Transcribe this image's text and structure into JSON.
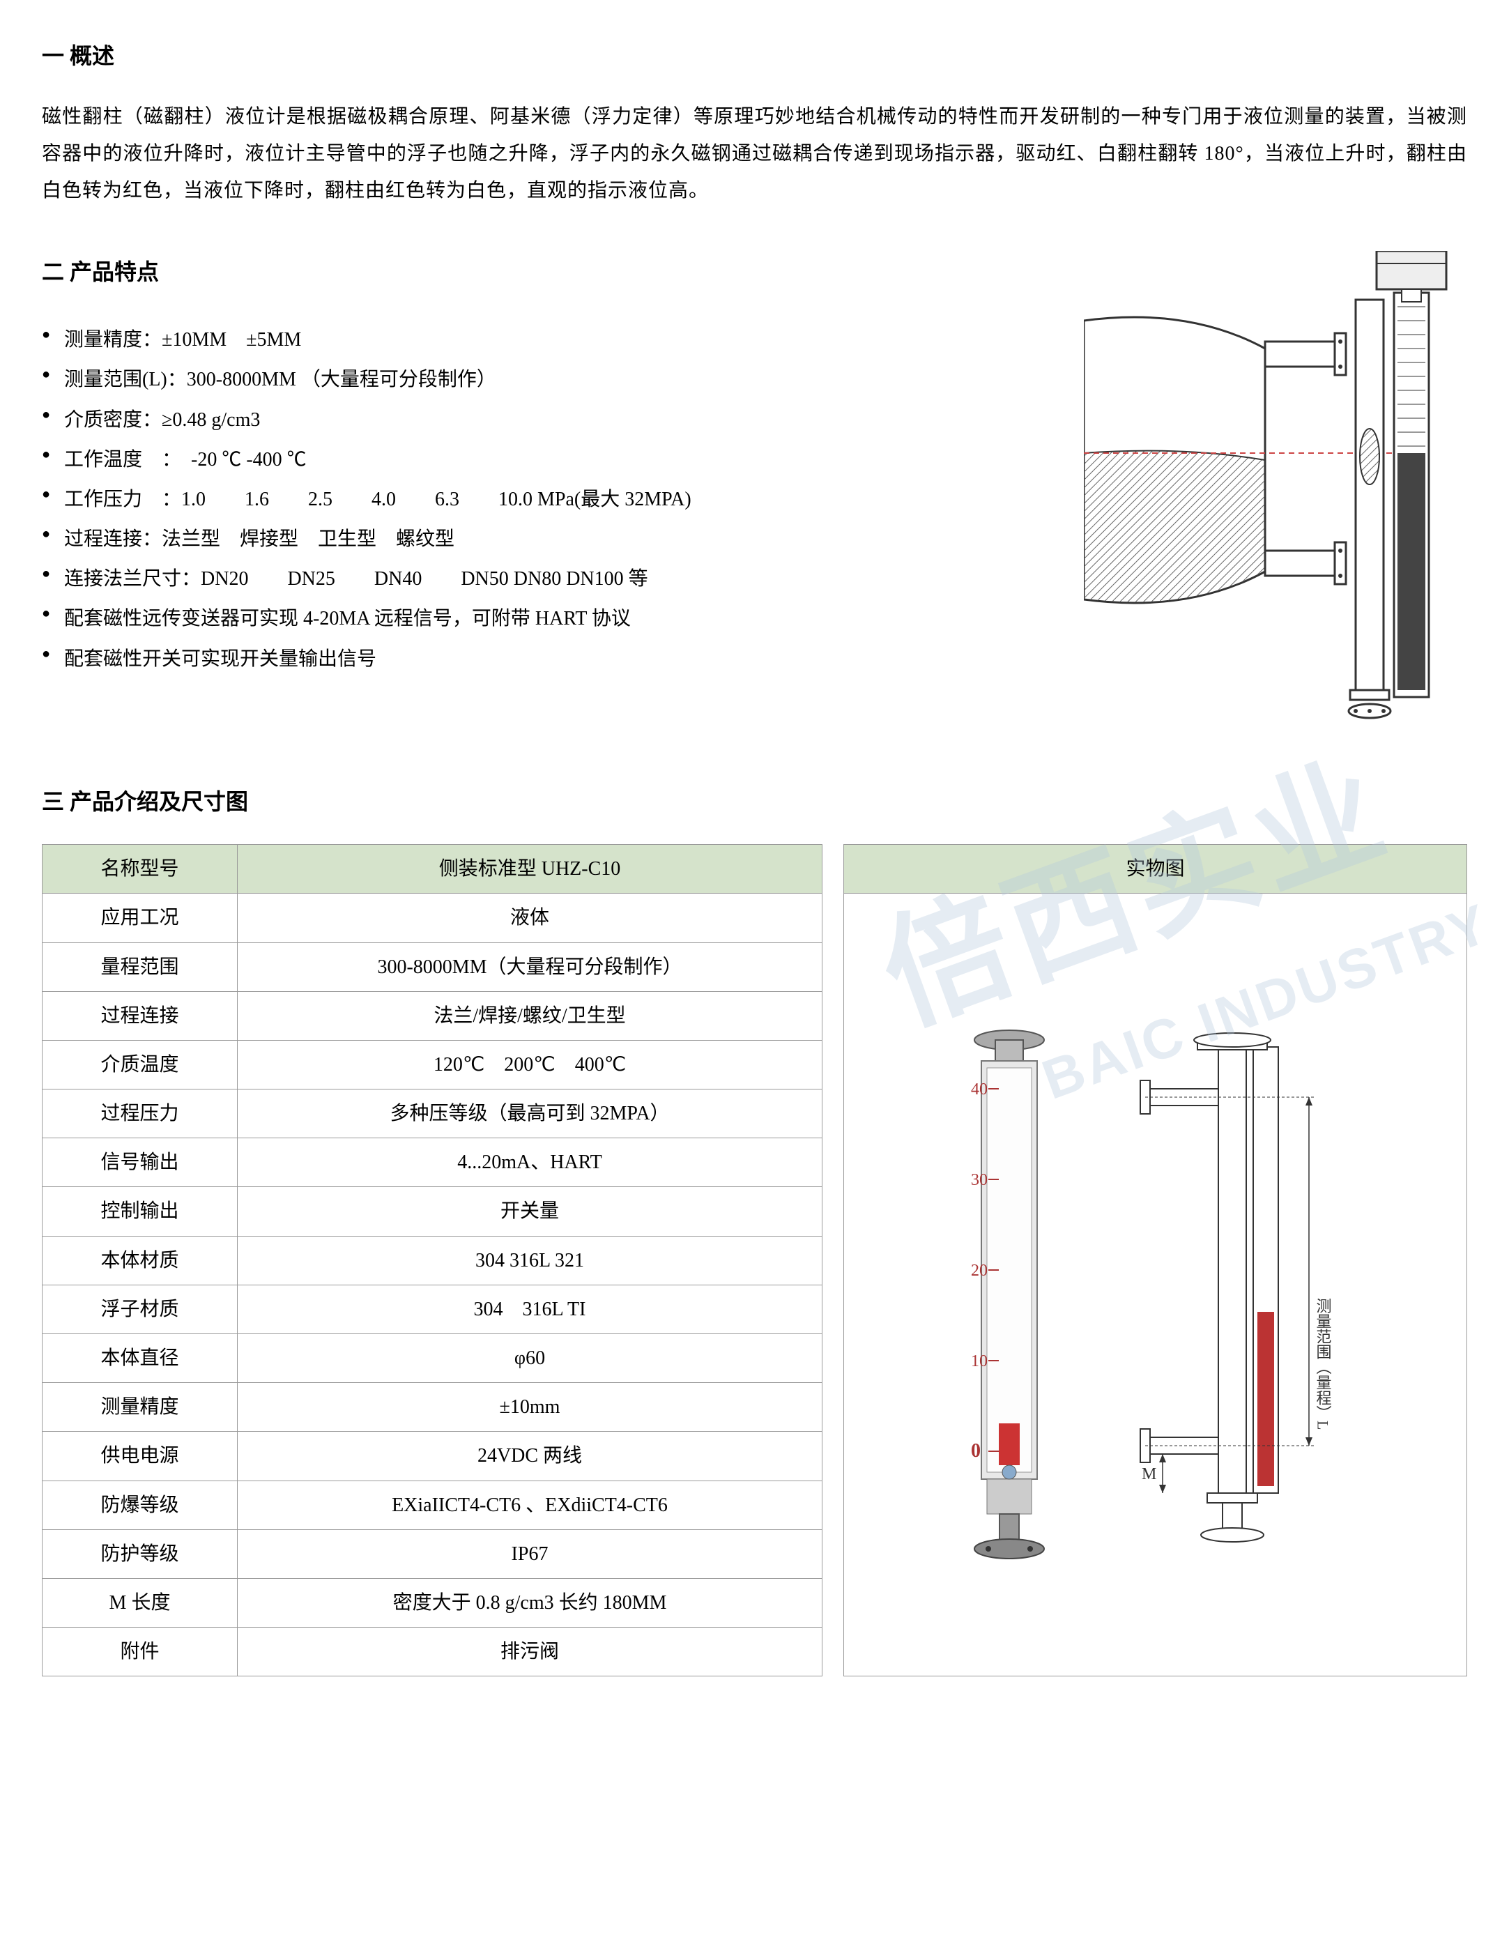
{
  "section1": {
    "title": "一 概述",
    "text": "磁性翻柱（磁翻柱）液位计是根据磁极耦合原理、阿基米德（浮力定律）等原理巧妙地结合机械传动的特性而开发研制的一种专门用于液位测量的装置，当被测容器中的液位升降时，液位计主导管中的浮子也随之升降，浮子内的永久磁钢通过磁耦合传递到现场指示器，驱动红、白翻柱翻转 180°，当液位上升时，翻柱由白色转为红色，当液位下降时，翻柱由红色转为白色，直观的指示液位高。"
  },
  "section2": {
    "title": "二 产品特点",
    "features": [
      "测量精度：±10MM　±5MM",
      "测量范围(L)：300-8000MM （大量程可分段制作）",
      "介质密度：≥0.48 g/cm3",
      "工作温度　：　-20 ℃ -400 ℃",
      "工作压力　：1.0　　1.6　　2.5　　4.0　　6.3　　10.0 MPa(最大 32MPA)",
      "过程连接：法兰型　焊接型　卫生型　螺纹型",
      "连接法兰尺寸：DN20　　DN25　　DN40　　DN50 DN80 DN100 等",
      "配套磁性远传变送器可实现 4-20MA 远程信号，可附带 HART 协议",
      "配套磁性开关可实现开关量输出信号"
    ]
  },
  "section3": {
    "title": "三 产品介绍及尺寸图",
    "table_header_label": "名称型号",
    "table_header_value": "侧装标准型 UHZ-C10",
    "image_header": "实物图",
    "rows": [
      {
        "label": "应用工况",
        "value": "液体"
      },
      {
        "label": "量程范围",
        "value": "300-8000MM（大量程可分段制作）"
      },
      {
        "label": "过程连接",
        "value": "法兰/焊接/螺纹/卫生型"
      },
      {
        "label": "介质温度",
        "value": "120℃　200℃　400℃"
      },
      {
        "label": "过程压力",
        "value": "多种压等级（最高可到 32MPA）"
      },
      {
        "label": "信号输出",
        "value": "4...20mA、HART"
      },
      {
        "label": "控制输出",
        "value": "开关量"
      },
      {
        "label": "本体材质",
        "value": "304 316L 321"
      },
      {
        "label": "浮子材质",
        "value": "304　316L TI"
      },
      {
        "label": "本体直径",
        "value": "φ60"
      },
      {
        "label": "测量精度",
        "value": "±10mm"
      },
      {
        "label": "供电电源",
        "value": "24VDC 两线"
      },
      {
        "label": "防爆等级",
        "value": "EXiaIICT4-CT6 、EXdiiCT4-CT6"
      },
      {
        "label": "防护等级",
        "value": "IP67"
      },
      {
        "label": "M 长度",
        "value": "密度大于 0.8 g/cm3 长约 180MM"
      },
      {
        "label": "附件",
        "value": "排污阀"
      }
    ]
  },
  "watermark": {
    "main": "倍西实业",
    "sub": "BAIC INDUSTRY"
  },
  "colors": {
    "table_header_bg": "#d5e3cb",
    "border": "#999999",
    "watermark": "rgba(180,200,220,0.35)"
  },
  "diagram": {
    "tank_liquid_color": "#b8b8b8",
    "line_color": "#333333",
    "indicator_color": "#555555"
  },
  "product_image": {
    "scale_numbers": [
      "40",
      "30",
      "20",
      "10",
      "0"
    ],
    "scale_color": "#aa3333",
    "body_color": "#888888",
    "label_text": "测量范围（量程）L",
    "m_label": "M"
  }
}
